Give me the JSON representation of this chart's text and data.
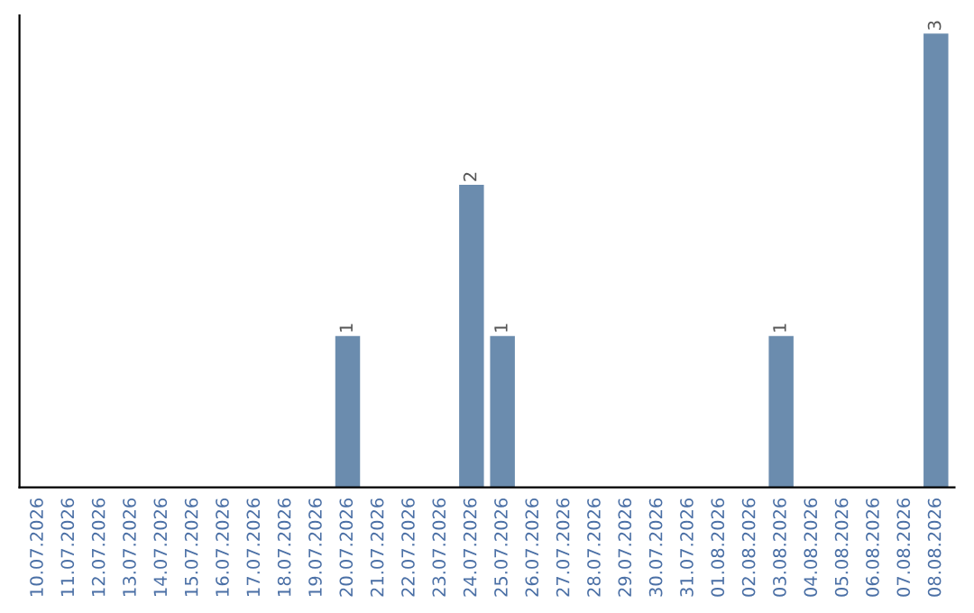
{
  "chart_data": {
    "type": "bar",
    "categories": [
      "10.07.2026",
      "11.07.2026",
      "12.07.2026",
      "13.07.2026",
      "14.07.2026",
      "15.07.2026",
      "16.07.2026",
      "17.07.2026",
      "18.07.2026",
      "19.07.2026",
      "20.07.2026",
      "21.07.2026",
      "22.07.2026",
      "23.07.2026",
      "24.07.2026",
      "25.07.2026",
      "26.07.2026",
      "27.07.2026",
      "28.07.2026",
      "29.07.2026",
      "30.07.2026",
      "31.07.2026",
      "01.08.2026",
      "02.08.2026",
      "03.08.2026",
      "04.08.2026",
      "05.08.2026",
      "06.08.2026",
      "07.08.2026",
      "08.08.2026"
    ],
    "values": [
      0,
      0,
      0,
      0,
      0,
      0,
      0,
      0,
      0,
      0,
      1,
      0,
      0,
      0,
      2,
      1,
      0,
      0,
      0,
      0,
      0,
      0,
      0,
      0,
      1,
      0,
      0,
      0,
      0,
      3
    ],
    "value_labels": [
      null,
      null,
      null,
      null,
      null,
      null,
      null,
      null,
      null,
      null,
      "1",
      null,
      null,
      null,
      "2",
      "1",
      null,
      null,
      null,
      null,
      null,
      null,
      null,
      null,
      "1",
      null,
      null,
      null,
      null,
      "3"
    ],
    "color": "#6b8cae",
    "grid": false,
    "legend": false
  }
}
